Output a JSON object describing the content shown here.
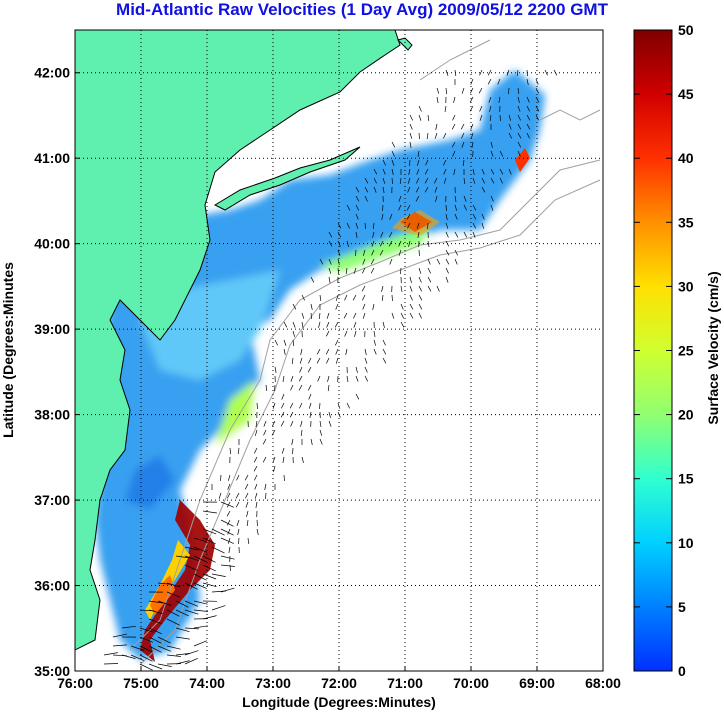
{
  "title": "Mid-Atlantic Raw Velocities (1 Day Avg) 2009/05/12 2200 GMT",
  "map": {
    "xlabel": "Longitude (Degrees:Minutes)",
    "ylabel": "Latitude (Degrees:Minutes",
    "x_ticks": [
      "76:00",
      "75:00",
      "74:00",
      "73:00",
      "72:00",
      "71:00",
      "70:00",
      "69:00",
      "68:00"
    ],
    "y_ticks": [
      "35:00",
      "36:00",
      "37:00",
      "38:00",
      "39:00",
      "40:00",
      "41:00",
      "42:00"
    ],
    "lon_range": [
      -76,
      -68
    ],
    "lat_range": [
      35,
      42.5
    ],
    "land_color": "#5ff0b0",
    "grid": "dotted"
  },
  "colorbar": {
    "label": "Surface Velocity (cm/s)",
    "ticks": [
      "0",
      "5",
      "10",
      "15",
      "20",
      "25",
      "30",
      "35",
      "40",
      "45",
      "50"
    ],
    "range": [
      0,
      50
    ]
  }
}
